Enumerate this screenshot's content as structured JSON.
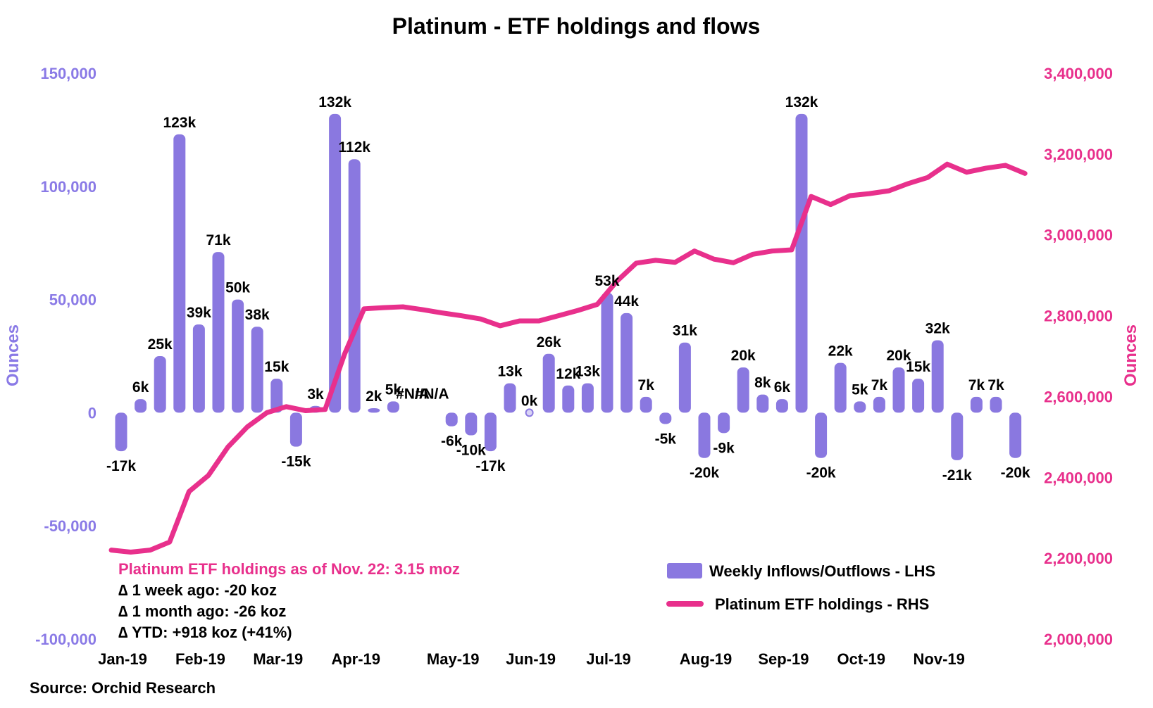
{
  "chart_data": {
    "type": "bar+line",
    "title": "Platinum - ETF holdings and flows",
    "left_axis": {
      "label": "Ounces",
      "ylim": [
        -100000,
        150000
      ],
      "ticks": [
        150000,
        100000,
        50000,
        0,
        -50000,
        -100000
      ],
      "tick_labels": [
        "150,000",
        "100,000",
        "50,000",
        "0",
        "-50,000",
        "-100,000"
      ],
      "color": "#8a7ae6"
    },
    "right_axis": {
      "label": "Ounces",
      "ylim": [
        2000000,
        3400000
      ],
      "ticks": [
        3400000,
        3200000,
        3000000,
        2800000,
        2600000,
        2400000,
        2200000,
        2000000
      ],
      "tick_labels": [
        "3,400,000",
        "3,200,000",
        "3,000,000",
        "2,800,000",
        "2,600,000",
        "2,400,000",
        "2,200,000",
        "2,000,000"
      ],
      "color": "#e8308c"
    },
    "x_tick_labels": [
      "Jan-19",
      "Feb-19",
      "Mar-19",
      "Apr-19",
      "May-19",
      "Jun-19",
      "Jul-19",
      "Aug-19",
      "Sep-19",
      "Oct-19",
      "Nov-19"
    ],
    "x_tick_week_index": [
      0,
      4,
      8,
      12,
      17,
      21,
      25,
      30,
      34,
      38,
      42
    ],
    "series": [
      {
        "name": "Weekly Inflows/Outflows - LHS",
        "type": "bar",
        "color": "#8a78e0",
        "values": [
          -17000,
          6000,
          25000,
          123000,
          39000,
          71000,
          50000,
          38000,
          15000,
          -15000,
          3000,
          132000,
          112000,
          2000,
          5000,
          null,
          null,
          -6000,
          -10000,
          -17000,
          13000,
          0,
          26000,
          12000,
          13000,
          53000,
          44000,
          7000,
          -5000,
          31000,
          -20000,
          -9000,
          20000,
          8000,
          6000,
          132000,
          -20000,
          22000,
          5000,
          7000,
          20000,
          15000,
          32000,
          -21000,
          7000,
          7000,
          -20000
        ],
        "labels": [
          "-17k",
          "6k",
          "25k",
          "123k",
          "39k",
          "71k",
          "50k",
          "38k",
          "15k",
          "-15k",
          "3k",
          "132k",
          "112k",
          "2k",
          "5k",
          "#N/A",
          "#N/A",
          "-6k",
          "-10k",
          "-17k",
          "13k",
          "0k",
          "26k",
          "12k",
          "13k",
          "53k",
          "44k",
          "7k",
          "-5k",
          "31k",
          "-20k",
          "-9k",
          "20k",
          "8k",
          "6k",
          "132k",
          "-20k",
          "22k",
          "5k",
          "7k",
          "20k",
          "15k",
          "32k",
          "-21k",
          "7k",
          "7k",
          "-20k"
        ]
      },
      {
        "name": "Platinum ETF holdings - RHS",
        "type": "line",
        "color": "#e8308c",
        "values": [
          2220000,
          2215000,
          2220000,
          2240000,
          2365000,
          2405000,
          2475000,
          2525000,
          2560000,
          2575000,
          2565000,
          2568000,
          2705000,
          2817000,
          2820000,
          2822000,
          2815000,
          2807000,
          2800000,
          2792000,
          2775000,
          2787000,
          2787000,
          2800000,
          2813000,
          2828000,
          2885000,
          2930000,
          2937000,
          2932000,
          2960000,
          2940000,
          2931000,
          2952000,
          2960000,
          2963000,
          3095000,
          3075000,
          3097000,
          3102000,
          3109000,
          3127000,
          3142000,
          3175000,
          3155000,
          3165000,
          3172000,
          3152000
        ]
      }
    ],
    "legend": {
      "placement": "bottom-right"
    },
    "grid": false
  },
  "annotation": {
    "headline": "Platinum ETF holdings as of Nov. 22: 3.15 moz",
    "lines": [
      "∆ 1 week ago: -20 koz",
      "∆ 1 month ago: -26 koz",
      "∆ YTD: +918 koz (+41%)"
    ]
  },
  "source": "Source: Orchid Research"
}
